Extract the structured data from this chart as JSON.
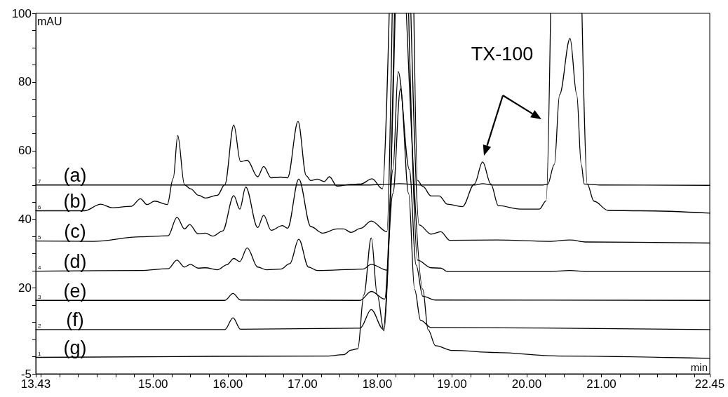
{
  "chart_data": {
    "type": "line",
    "xlabel": "min",
    "ylabel": "mAU",
    "xlim": [
      13.43,
      22.45
    ],
    "xticks": [
      13.43,
      {
        "value": 13.5,
        "label": null
      },
      {
        "value": 13.75,
        "label": null
      },
      {
        "value": 14,
        "label": null
      },
      {
        "value": 14.25,
        "label": null
      },
      {
        "value": 14.5,
        "label": null
      },
      {
        "value": 14.75,
        "label": null
      },
      {
        "value": 15,
        "label": "15.00"
      },
      {
        "value": 15.25,
        "label": null
      },
      {
        "value": 15.5,
        "label": null
      },
      {
        "value": 15.75,
        "label": null
      },
      {
        "value": 16,
        "label": "16.00"
      },
      {
        "value": 16.25,
        "label": null
      },
      {
        "value": 16.5,
        "label": null
      },
      {
        "value": 16.75,
        "label": null
      },
      {
        "value": 17,
        "label": "17.00"
      },
      {
        "value": 17.25,
        "label": null
      },
      {
        "value": 17.5,
        "label": null
      },
      {
        "value": 17.75,
        "label": null
      },
      {
        "value": 18,
        "label": "18.00"
      },
      {
        "value": 18.25,
        "label": null
      },
      {
        "value": 18.5,
        "label": null
      },
      {
        "value": 18.75,
        "label": null
      },
      {
        "value": 19,
        "label": "19.00"
      },
      {
        "value": 19.25,
        "label": null
      },
      {
        "value": 19.5,
        "label": null
      },
      {
        "value": 19.75,
        "label": null
      },
      {
        "value": 20,
        "label": "20.00"
      },
      {
        "value": 20.25,
        "label": null
      },
      {
        "value": 20.5,
        "label": null
      },
      {
        "value": 20.75,
        "label": null
      },
      {
        "value": 21,
        "label": "21.00"
      },
      {
        "value": 21.25,
        "label": null
      },
      {
        "value": 21.5,
        "label": null
      },
      {
        "value": 21.75,
        "label": null
      },
      {
        "value": 22,
        "label": null
      },
      {
        "value": 22.25,
        "label": null
      },
      22.45
    ],
    "ylim": [
      -5,
      100
    ],
    "yticks": [
      -5,
      {
        "value": 0,
        "label": null
      },
      {
        "value": 5,
        "label": null
      },
      {
        "value": 10,
        "label": null
      },
      {
        "value": 15,
        "label": null
      },
      20,
      {
        "value": 25,
        "label": null
      },
      {
        "value": 30,
        "label": null
      },
      {
        "value": 35,
        "label": null
      },
      40,
      {
        "value": 45,
        "label": null
      },
      {
        "value": 50,
        "label": null
      },
      {
        "value": 55,
        "label": null
      },
      60,
      {
        "value": 65,
        "label": null
      },
      {
        "value": 70,
        "label": null
      },
      {
        "value": 75,
        "label": null
      },
      80,
      {
        "value": 85,
        "label": null
      },
      {
        "value": 90,
        "label": null
      },
      {
        "value": 95,
        "label": null
      },
      100
    ],
    "grid": false,
    "series": [
      {
        "name": "(a)",
        "color": "#000000",
        "x": [
          13.43,
          17.9,
          18.1,
          18.3,
          18.6,
          19.3,
          19.41,
          19.55,
          20.2,
          20.28,
          20.37,
          20.44,
          20.58,
          20.67,
          20.73,
          20.77,
          21.0,
          22.45
        ],
        "values": [
          50,
          50,
          50.2,
          50.4,
          50,
          50,
          50.4,
          50,
          50,
          50.2,
          56,
          76.3,
          92.7,
          76.3,
          56,
          50.3,
          50,
          49.9
        ]
      },
      {
        "name": "(b)",
        "color": "#000000",
        "x": [
          13.43,
          14.08,
          14.3,
          14.45,
          14.71,
          14.83,
          14.92,
          15.02,
          15.19,
          15.27,
          15.33,
          15.42,
          15.5,
          15.61,
          15.7,
          15.86,
          15.96,
          16.08,
          16.17,
          16.26,
          16.4,
          16.48,
          16.58,
          16.71,
          16.8,
          16.94,
          17.05,
          17.11,
          17.2,
          17.29,
          17.36,
          17.46,
          17.65,
          17.78,
          17.93,
          18.07,
          18.16,
          18.3,
          18.49,
          18.54,
          18.61,
          18.72,
          18.83,
          18.94,
          19.14,
          19.3,
          19.41,
          19.52,
          19.62,
          19.91,
          20.17,
          20.26,
          20.32,
          20.5,
          20.74,
          20.81,
          20.9,
          21.09,
          21.52,
          22.45
        ],
        "values": [
          42.5,
          42.5,
          44.4,
          43.4,
          43.8,
          46.0,
          44.3,
          45.3,
          44.3,
          52,
          64.4,
          50.1,
          48.9,
          47.0,
          46.2,
          47.0,
          50.1,
          67.5,
          56.8,
          57.2,
          52.4,
          55.4,
          52.1,
          52.3,
          52.1,
          68.5,
          52.7,
          51.3,
          51.7,
          51.0,
          52.4,
          49.7,
          50.2,
          50.3,
          51.8,
          48.9,
          100,
          null,
          100,
          51.3,
          49.6,
          46.8,
          46.8,
          44.4,
          43.7,
          50.3,
          56.7,
          50.3,
          44.0,
          43.0,
          43.0,
          45.4,
          100,
          null,
          100,
          50.3,
          45.3,
          42.6,
          42.5,
          41.8
        ]
      },
      {
        "name": "(c)",
        "color": "#000000",
        "x": [
          13.43,
          14.2,
          14.83,
          15.2,
          15.32,
          15.42,
          15.49,
          15.6,
          15.7,
          15.8,
          15.93,
          16.08,
          16.16,
          16.24,
          16.4,
          16.48,
          16.58,
          16.73,
          16.8,
          16.95,
          17.11,
          17.27,
          17.46,
          17.55,
          17.65,
          17.78,
          17.92,
          18.13,
          18.2,
          18.32,
          18.45,
          18.56,
          18.72,
          18.85,
          18.97,
          19.6,
          20.3,
          20.58,
          20.8,
          22.45
        ],
        "values": [
          33.7,
          33.6,
          34.9,
          35.2,
          40.6,
          37.2,
          38.5,
          35.8,
          36.0,
          35.1,
          36.6,
          46.9,
          43.0,
          49.4,
          37.6,
          41.2,
          36.8,
          38.2,
          37.4,
          51.7,
          37.9,
          36.0,
          37.2,
          37.2,
          36.2,
          37.4,
          39.5,
          36.4,
          100,
          null,
          100,
          38.4,
          35.7,
          36.4,
          33.9,
          34.0,
          33.6,
          34.0,
          33.4,
          33.1
        ]
      },
      {
        "name": "(d)",
        "color": "#000000",
        "x": [
          13.43,
          14.83,
          15.2,
          15.32,
          15.42,
          15.5,
          15.6,
          15.7,
          15.86,
          15.99,
          16.08,
          16.16,
          16.26,
          16.4,
          16.52,
          16.71,
          16.83,
          16.95,
          17.08,
          17.2,
          17.81,
          17.92,
          18.13,
          18.23,
          18.32,
          18.42,
          18.54,
          18.72,
          18.85,
          18.94,
          20.3,
          20.58,
          20.8,
          22.45
        ],
        "values": [
          24.9,
          25.1,
          25.6,
          28.1,
          26.1,
          26.9,
          25.8,
          25.9,
          25.3,
          26.8,
          28.6,
          27.7,
          31.7,
          26.1,
          25.3,
          25.5,
          27.1,
          34.2,
          26.1,
          25.1,
          25.5,
          26.9,
          25.2,
          100,
          null,
          100,
          28.1,
          25.9,
          25.8,
          24.8,
          24.8,
          25.1,
          24.8,
          24.8
        ]
      },
      {
        "name": "(e)",
        "color": "#000000",
        "x": [
          13.43,
          15.96,
          16.07,
          16.17,
          17.77,
          17.92,
          18.1,
          18.21,
          18.28,
          18.43,
          18.52,
          18.61,
          18.78,
          22.45
        ],
        "values": [
          16.4,
          16.4,
          18.4,
          16.5,
          16.4,
          19.0,
          16.8,
          54.5,
          83,
          54.5,
          26.7,
          17.6,
          16.5,
          16.4
        ]
      },
      {
        "name": "(f)",
        "color": "#000000",
        "x": [
          13.43,
          15.96,
          16.07,
          16.17,
          17.77,
          17.92,
          18.08,
          18.21,
          18.31,
          18.42,
          18.5,
          18.58,
          18.72,
          22.45
        ],
        "values": [
          7.9,
          7.9,
          11.3,
          8.0,
          8.3,
          13.7,
          8.0,
          47.5,
          78,
          47.5,
          19.6,
          10.6,
          8.5,
          7.9
        ]
      },
      {
        "name": "(g)",
        "color": "#000000",
        "x": [
          13.43,
          17.33,
          17.55,
          17.65,
          17.74,
          17.82,
          17.92,
          18.0,
          18.09,
          18.24,
          18.31,
          18.39,
          18.61,
          18.68,
          18.78,
          19.01,
          19.59,
          20.43,
          22.45
        ],
        "values": [
          -0.2,
          0.2,
          0.6,
          1.9,
          2.3,
          18,
          34.6,
          18,
          7.5,
          100,
          null,
          100,
          19.6,
          7.9,
          3.2,
          1.8,
          1.2,
          0.2,
          -0.5
        ]
      }
    ],
    "annotations": [
      {
        "text": "7",
        "y": 50
      },
      {
        "text": "6",
        "y": 42.5
      },
      {
        "text": "5",
        "y": 33.7
      },
      {
        "text": "4",
        "y": 24.9
      },
      {
        "text": "3",
        "y": 16.4
      },
      {
        "text": "2",
        "y": 7.9
      },
      {
        "text": "1",
        "y": -0.2
      },
      "TX-100"
    ]
  }
}
